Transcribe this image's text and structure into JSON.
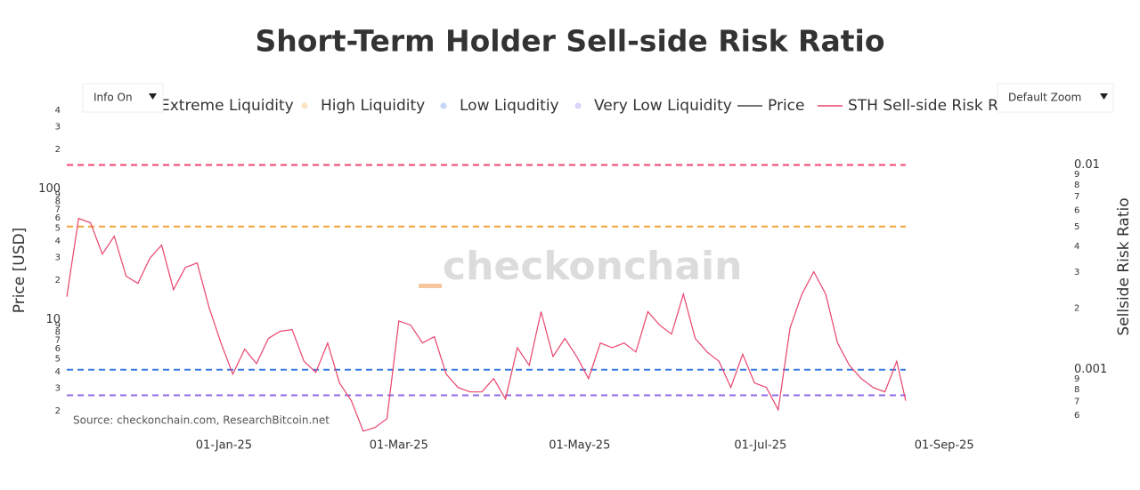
{
  "chart_data": {
    "type": "line",
    "title": "Short-Term Holder Sell-side Risk Ratio",
    "ylabel": "Price [USD]",
    "y2label": "Sellside Risk Ratio",
    "watermark": "checkonchain",
    "source": "Source: checkonchain.com, ResearchBitcoin.net",
    "log_y": true,
    "log_y2": true,
    "grid": false,
    "xlim": [
      "2024-11-09",
      "2025-10-10"
    ],
    "xticks": [
      {
        "value": "2025-01-01",
        "label": "01-Jan-25"
      },
      {
        "value": "2025-03-01",
        "label": "01-Mar-25"
      },
      {
        "value": "2025-05-01",
        "label": "01-May-25"
      },
      {
        "value": "2025-07-01",
        "label": "01-Jul-25"
      },
      {
        "value": "2025-09-01",
        "label": "01-Sep-25"
      }
    ],
    "ylim": [
      1.4,
      400
    ],
    "yticks": [
      2,
      3,
      4,
      5,
      6,
      7,
      8,
      9,
      10,
      {
        "value": 20,
        "label": "2"
      },
      {
        "value": 30,
        "label": "3"
      },
      {
        "value": 40,
        "label": "4"
      },
      {
        "value": 50,
        "label": "5"
      },
      {
        "value": 60,
        "label": "6"
      },
      {
        "value": 70,
        "label": "7"
      },
      {
        "value": 80,
        "label": "8"
      },
      {
        "value": 90,
        "label": "9"
      },
      100,
      {
        "value": 200,
        "label": "2"
      },
      {
        "value": 300,
        "label": "3"
      },
      {
        "value": 400,
        "label": "4"
      }
    ],
    "y2lim": [
      0.0005,
      0.0185
    ],
    "y2ticks": [
      {
        "value": 0.0006,
        "label": "6"
      },
      {
        "value": 0.0007,
        "label": "7"
      },
      {
        "value": 0.0008,
        "label": "8"
      },
      {
        "value": 0.0009,
        "label": "9"
      },
      0.001,
      {
        "value": 0.002,
        "label": "2"
      },
      {
        "value": 0.003,
        "label": "3"
      },
      {
        "value": 0.004,
        "label": "4"
      },
      {
        "value": 0.005,
        "label": "5"
      },
      {
        "value": 0.006,
        "label": "6"
      },
      {
        "value": 0.007,
        "label": "7"
      },
      {
        "value": 0.008,
        "label": "8"
      },
      {
        "value": 0.009,
        "label": "9"
      },
      0.01
    ],
    "x": [
      "2024-11-09",
      "2024-11-13",
      "2024-11-17",
      "2024-11-21",
      "2024-11-25",
      "2024-11-29",
      "2024-12-03",
      "2024-12-07",
      "2024-12-11",
      "2024-12-15",
      "2024-12-19",
      "2024-12-23",
      "2024-12-27",
      "2024-12-31",
      "2025-01-04",
      "2025-01-08",
      "2025-01-12",
      "2025-01-16",
      "2025-01-20",
      "2025-01-24",
      "2025-01-28",
      "2025-02-01",
      "2025-02-05",
      "2025-02-09",
      "2025-02-13",
      "2025-02-17",
      "2025-02-21",
      "2025-02-25",
      "2025-03-01",
      "2025-03-05",
      "2025-03-09",
      "2025-03-13",
      "2025-03-17",
      "2025-03-21",
      "2025-03-25",
      "2025-03-29",
      "2025-04-02",
      "2025-04-06",
      "2025-04-10",
      "2025-04-14",
      "2025-04-18",
      "2025-04-22",
      "2025-04-26",
      "2025-04-30",
      "2025-05-04",
      "2025-05-08",
      "2025-05-12",
      "2025-05-16",
      "2025-05-20",
      "2025-05-24",
      "2025-05-28",
      "2025-06-01",
      "2025-06-05",
      "2025-06-09",
      "2025-06-13",
      "2025-06-17",
      "2025-06-21",
      "2025-06-25",
      "2025-06-29",
      "2025-07-03",
      "2025-07-07",
      "2025-07-11",
      "2025-07-15",
      "2025-07-19",
      "2025-07-23",
      "2025-07-27",
      "2025-07-31",
      "2025-08-04",
      "2025-08-08",
      "2025-08-12",
      "2025-08-16",
      "2025-08-19"
    ],
    "series": [
      {
        "name": "Extreme Liquidity",
        "color": "#ef476f",
        "kind": "hline",
        "axis": "y2",
        "value": 0.01
      },
      {
        "name": "High Liquidity",
        "color": "#f4a236",
        "kind": "hline",
        "axis": "y2",
        "value": 0.005
      },
      {
        "name": "Low Liquditiy",
        "color": "#3a7be0",
        "kind": "hline",
        "axis": "y2",
        "value": 0.001
      },
      {
        "name": "Very Low Liquidity",
        "color": "#8f6ae8",
        "kind": "hline",
        "axis": "y2",
        "value": 0.00075
      },
      {
        "name": "Price",
        "color": "#444444",
        "kind": "line",
        "axis": "y"
      },
      {
        "name": "STH Sell-side Risk Ratio",
        "color": "#e8436b",
        "kind": "line",
        "axis": "y2",
        "values": [
          0.00227,
          0.00548,
          0.00522,
          0.00367,
          0.00449,
          0.00286,
          0.00264,
          0.0035,
          0.00406,
          0.00246,
          0.00316,
          0.00332,
          0.00201,
          0.00135,
          0.000951,
          0.00126,
          0.00107,
          0.00142,
          0.00154,
          0.00157,
          0.0011,
          0.00097,
          0.00135,
          0.000861,
          0.000705,
          0.000501,
          0.000522,
          0.000577,
          0.00173,
          0.00165,
          0.00135,
          0.00145,
          0.000951,
          0.000819,
          0.000779,
          0.000779,
          0.000905,
          0.000719,
          0.00128,
          0.00105,
          0.00192,
          0.00116,
          0.00142,
          0.00116,
          0.000905,
          0.00135,
          0.00128,
          0.00135,
          0.00122,
          0.00192,
          0.00165,
          0.00149,
          0.00234,
          0.00142,
          0.00122,
          0.0011,
          0.000819,
          0.00119,
          0.000861,
          0.000819,
          0.000637,
          0.0016,
          0.00234,
          0.00301,
          0.00234,
          0.00135,
          0.00105,
          0.000905,
          0.000819,
          0.000779,
          0.0011,
          0.000705
        ]
      }
    ]
  },
  "controls": {
    "info": "Info On",
    "zoom": "Default Zoom"
  }
}
